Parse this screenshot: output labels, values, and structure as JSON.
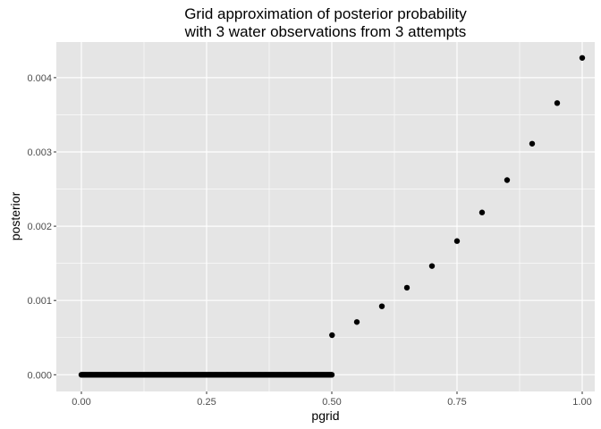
{
  "chart_data": {
    "type": "scatter",
    "title": [
      "Grid approximation of posterior probability",
      "with 3 water observations from 3 attempts"
    ],
    "xlabel": "pgrid",
    "ylabel": "posterior",
    "xlim": [
      -0.05,
      1.025
    ],
    "ylim": [
      -0.000225,
      0.00448
    ],
    "x_ticks": [
      0,
      0.25,
      0.5,
      0.75,
      1
    ],
    "x_tick_labels": [
      "0.00",
      "0.25",
      "0.50",
      "0.75",
      "1.00"
    ],
    "y_ticks": [
      0,
      0.001,
      0.002,
      0.003,
      0.004
    ],
    "y_tick_labels": [
      "0.000",
      "0.001",
      "0.002",
      "0.003",
      "0.004"
    ],
    "grid": true,
    "legend": "none",
    "series": [
      {
        "description_points": "posterior values along pgrid",
        "x": [
          0,
          0.05,
          0.1,
          0.15,
          0.2,
          0.25,
          0.3,
          0.35,
          0.4,
          0.45,
          0.5,
          0.5005,
          0.55,
          0.6,
          0.65,
          0.7,
          0.75,
          0.8,
          0.85,
          0.9,
          0.95,
          1
        ],
        "y": [
          0,
          0,
          0,
          0,
          0,
          0,
          0,
          0,
          0,
          0,
          0,
          0.000533,
          0.00071,
          0.000922,
          0.001172,
          0.001464,
          0.0018,
          0.002185,
          0.002621,
          0.003111,
          0.003658,
          0.004266
        ]
      }
    ],
    "colors": {
      "panel": "#e5e5e5",
      "grid": "#ffffff",
      "points": "#000000"
    }
  }
}
